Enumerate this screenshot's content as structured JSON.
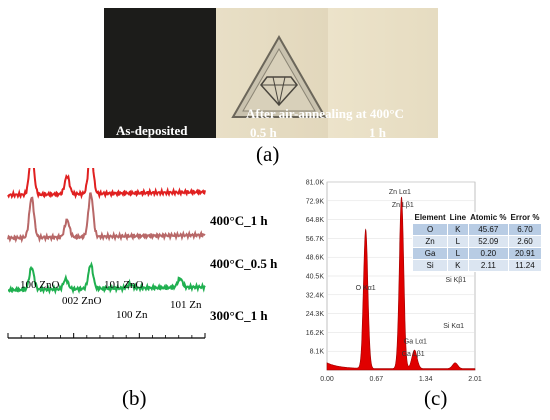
{
  "figure": {
    "panel_a": {
      "label": "(a)",
      "photo_labels": {
        "as_deposited": "As-deposited",
        "annealing": "After air-annealing at 400°C",
        "time_1": "0.5 h",
        "time_2": "1 h"
      },
      "colors": {
        "dark_strip": "#1c1c1a",
        "light_strip": "#e6dcc2",
        "lighter_strip": "#ebe2c9"
      }
    },
    "panel_b": {
      "label": "(b)"
    },
    "panel_c": {
      "label": "(c)"
    }
  },
  "chart_data": [
    {
      "type": "line",
      "xlabel": "2θ, deg",
      "ylabel": "",
      "xlim": [
        30,
        45
      ],
      "x_ticks": [
        "30",
        "35",
        "40",
        "45"
      ],
      "series": [
        {
          "name": "400°C_1 h",
          "color": "#e02020",
          "baseline": 195,
          "peaks": [
            [
              31.8,
              42
            ],
            [
              34.5,
              18
            ],
            [
              36.3,
              45
            ]
          ]
        },
        {
          "name": "400°C_0.5 h",
          "color": "#b86868",
          "baseline": 238,
          "peaks": [
            [
              31.8,
              40
            ],
            [
              34.5,
              17
            ],
            [
              36.3,
              43
            ]
          ]
        },
        {
          "name": "300°C_1 h",
          "color": "#20b050",
          "baseline": 290,
          "peaks": [
            [
              31.8,
              22
            ],
            [
              34.4,
              10
            ],
            [
              36.3,
              24
            ],
            [
              39.3,
              4
            ],
            [
              43.1,
              9
            ]
          ]
        }
      ],
      "peak_labels": [
        {
          "text": "100 ZnO",
          "x": 31.8
        },
        {
          "text": "002 ZnO",
          "x": 34.4
        },
        {
          "text": "101 ZnO",
          "x": 36.3
        },
        {
          "text": "100 Zn",
          "x": 39.0
        },
        {
          "text": "101 Zn",
          "x": 43.0
        }
      ]
    },
    {
      "type": "area",
      "xlim": [
        0.0,
        2.01
      ],
      "ylim": [
        0,
        81.0
      ],
      "x_ticks": [
        "0.00",
        "0.67",
        "1.34",
        "2.01"
      ],
      "y_ticks": [
        "8.1K",
        "16.2K",
        "24.3K",
        "32.4K",
        "40.5K",
        "48.6K",
        "56.7K",
        "64.8K",
        "72.9K",
        "81.0K"
      ],
      "color": "#e00000",
      "peaks": [
        [
          0.525,
          60
        ],
        [
          1.012,
          74
        ],
        [
          1.188,
          8
        ],
        [
          1.74,
          2.5
        ]
      ],
      "peak_labels": [
        {
          "text": "O  Kα1",
          "x": 0.525,
          "y": 34.5
        },
        {
          "text": "Zn Lα1",
          "x": 0.99,
          "y": 75.8
        },
        {
          "text": "Zn Lβ1",
          "x": 1.03,
          "y": 70.2
        },
        {
          "text": "Ga Lα1",
          "x": 1.2,
          "y": 11.5
        },
        {
          "text": "Ga Lβ1",
          "x": 1.17,
          "y": 6.0
        },
        {
          "text": "Si Kβ1",
          "x": 1.75,
          "y": 38.0
        },
        {
          "text": "Si Kα1",
          "x": 1.72,
          "y": 18.0
        }
      ],
      "table": {
        "headers": [
          "Element",
          "Line",
          "Atomic %",
          "Error %"
        ],
        "rows": [
          [
            "O",
            "K",
            "45.67",
            "6.70"
          ],
          [
            "Zn",
            "L",
            "52.09",
            "2.60"
          ],
          [
            "Ga",
            "L",
            "0.20",
            "20.91"
          ],
          [
            "Si",
            "K",
            "2.11",
            "11.24"
          ]
        ]
      }
    }
  ]
}
